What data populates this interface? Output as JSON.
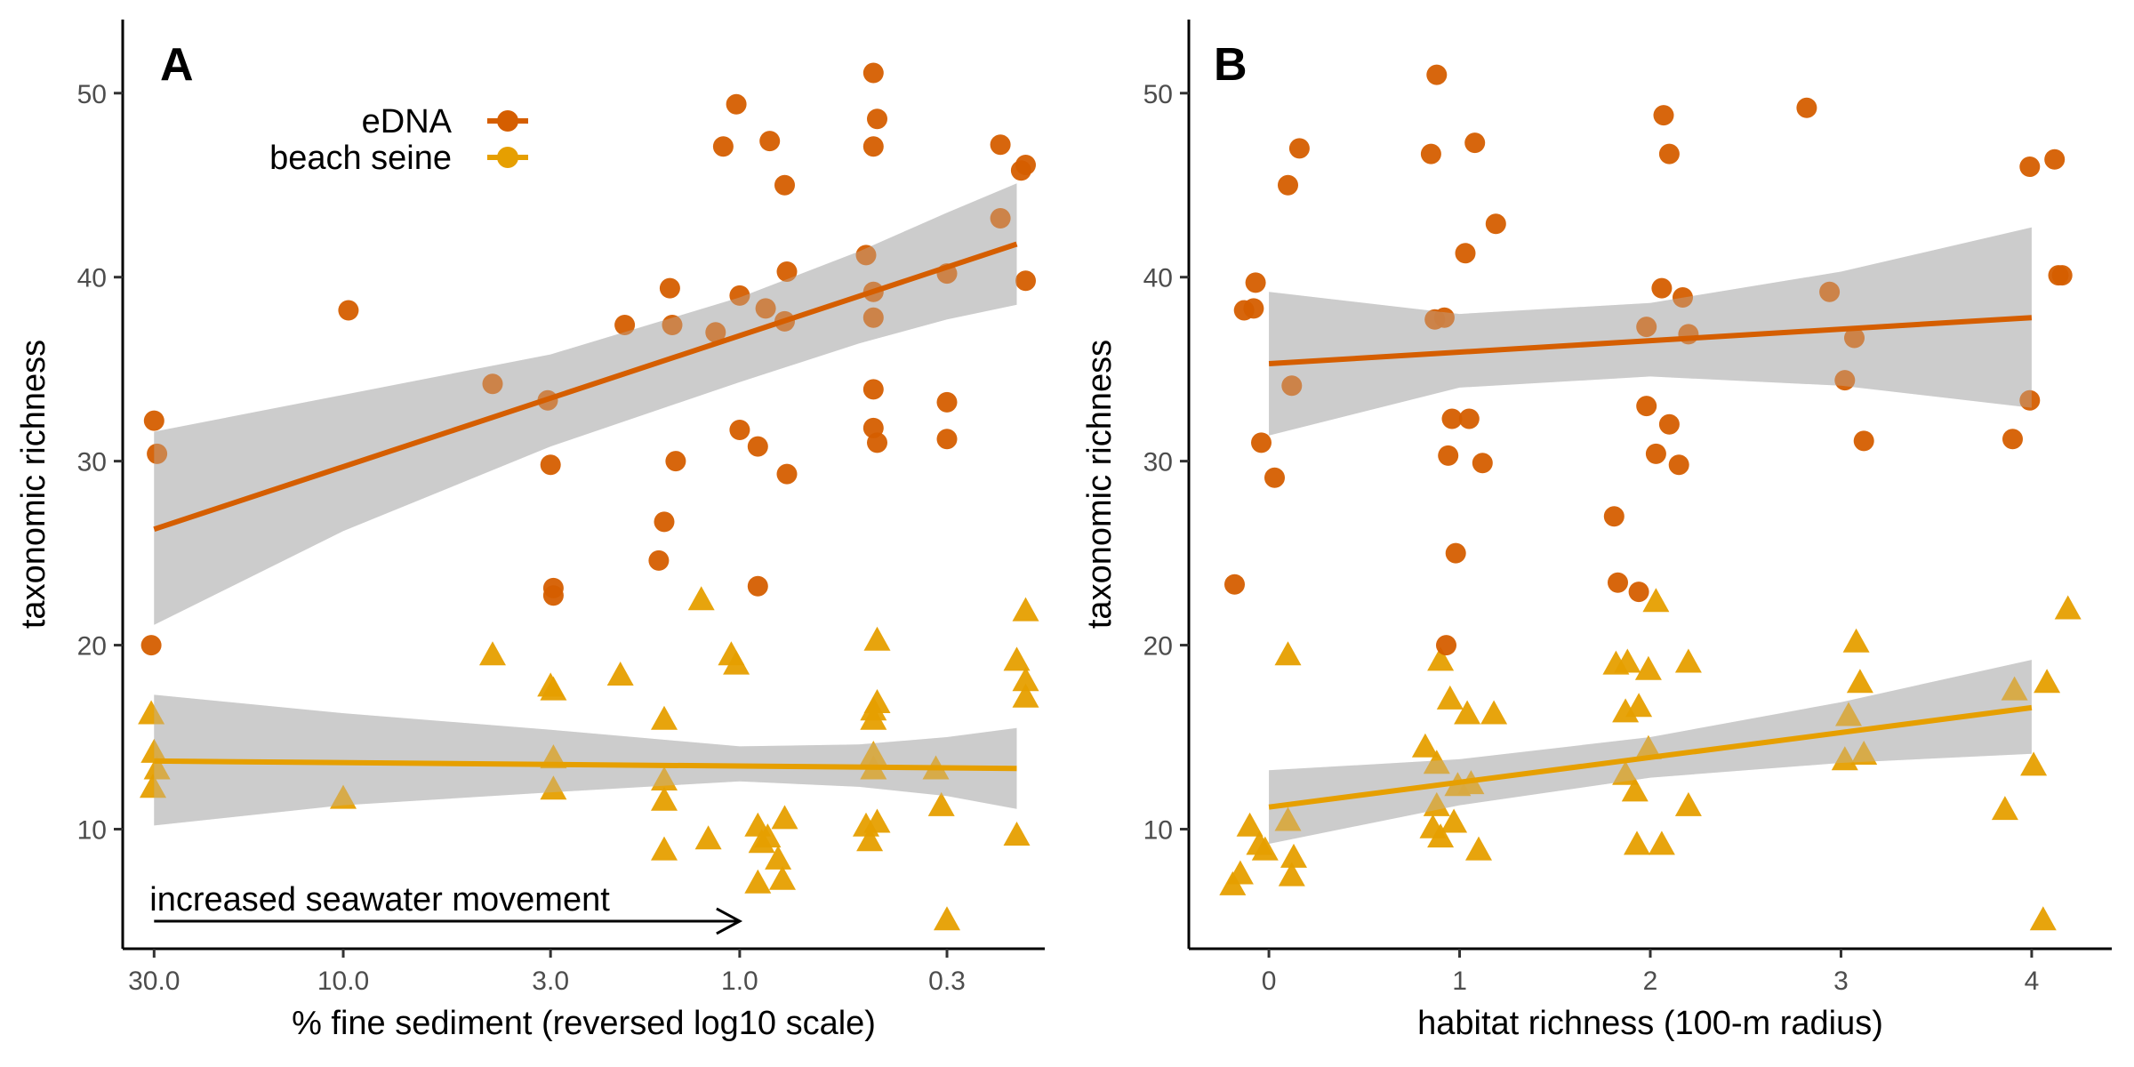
{
  "colors": {
    "edna": "#D55E00",
    "seine": "#E69F00",
    "ribbon": "#cccccc"
  },
  "legend": {
    "items": [
      {
        "label": "eDNA",
        "shape": "circle",
        "color": "#D55E00"
      },
      {
        "label": "beach seine",
        "shape": "triangle",
        "color": "#E69F00"
      }
    ],
    "placement": "top-left of panel A"
  },
  "chart_data": [
    {
      "type": "scatter",
      "panel": "A",
      "xlabel": "% fine sediment (reversed log10 scale)",
      "ylabel": "taxonomic richness",
      "x_scale": "log10, reversed",
      "xlim": [
        36,
        0.17
      ],
      "ylim": [
        3.5,
        54
      ],
      "x_ticks": [
        30,
        10,
        3,
        1,
        0.3
      ],
      "x_tick_labels": [
        "30.0",
        "10.0",
        "3.0",
        "1.0",
        "0.3"
      ],
      "y_ticks": [
        10,
        20,
        30,
        40,
        50
      ],
      "y_tick_labels": [
        "10",
        "20",
        "30",
        "40",
        "50"
      ],
      "grid": false,
      "annotation": {
        "text": "increased seawater movement",
        "arrow_from_x": 30,
        "arrow_to_x": 1.0,
        "arrow_y": 5
      },
      "series": [
        {
          "name": "eDNA",
          "marker": "circle",
          "points": [
            [
              30,
              32.2
            ],
            [
              29.5,
              30.4
            ],
            [
              30.5,
              20
            ],
            [
              9.7,
              38.2
            ],
            [
              4.2,
              34.2
            ],
            [
              3.05,
              33.3
            ],
            [
              3.0,
              29.8
            ],
            [
              2.95,
              23.1
            ],
            [
              2.95,
              22.7
            ],
            [
              1.95,
              37.4
            ],
            [
              1.6,
              24.6
            ],
            [
              1.55,
              26.7
            ],
            [
              1.5,
              39.4
            ],
            [
              1.48,
              37.4
            ],
            [
              1.45,
              30
            ],
            [
              1.15,
              37
            ],
            [
              1.1,
              47.1
            ],
            [
              1.02,
              49.4
            ],
            [
              1.0,
              39
            ],
            [
              1.0,
              31.7
            ],
            [
              0.9,
              23.2
            ],
            [
              0.9,
              30.8
            ],
            [
              0.86,
              38.3
            ],
            [
              0.84,
              47.4
            ],
            [
              0.77,
              45
            ],
            [
              0.77,
              37.6
            ],
            [
              0.76,
              40.3
            ],
            [
              0.76,
              29.3
            ],
            [
              0.48,
              41.2
            ],
            [
              0.46,
              47.1
            ],
            [
              0.46,
              51.1
            ],
            [
              0.46,
              39.2
            ],
            [
              0.46,
              37.8
            ],
            [
              0.46,
              33.9
            ],
            [
              0.46,
              31.8
            ],
            [
              0.45,
              48.6
            ],
            [
              0.45,
              31
            ],
            [
              0.3,
              33.2
            ],
            [
              0.3,
              31.2
            ],
            [
              0.3,
              40.2
            ],
            [
              0.22,
              47.2
            ],
            [
              0.22,
              43.2
            ],
            [
              0.195,
              45.8
            ],
            [
              0.19,
              46.1
            ],
            [
              0.19,
              39.8
            ]
          ]
        },
        {
          "name": "beach seine",
          "marker": "triangle",
          "points": [
            [
              30.5,
              16.2
            ],
            [
              30,
              14.1
            ],
            [
              29.5,
              13.2
            ],
            [
              30.2,
              12.2
            ],
            [
              10,
              11.6
            ],
            [
              4.2,
              19.4
            ],
            [
              3,
              17.7
            ],
            [
              2.95,
              17.5
            ],
            [
              2.95,
              13.8
            ],
            [
              2.95,
              12.1
            ],
            [
              2,
              18.3
            ],
            [
              1.55,
              15.9
            ],
            [
              1.55,
              12.6
            ],
            [
              1.55,
              11.5
            ],
            [
              1.55,
              8.8
            ],
            [
              1.25,
              22.4
            ],
            [
              1.2,
              9.4
            ],
            [
              1.05,
              19.4
            ],
            [
              1.02,
              18.9
            ],
            [
              0.9,
              10.1
            ],
            [
              0.9,
              7
            ],
            [
              0.88,
              9.2
            ],
            [
              0.85,
              9.5
            ],
            [
              0.8,
              8.3
            ],
            [
              0.78,
              7.2
            ],
            [
              0.77,
              10.5
            ],
            [
              0.48,
              10.1
            ],
            [
              0.47,
              9.3
            ],
            [
              0.46,
              16.4
            ],
            [
              0.46,
              15.9
            ],
            [
              0.46,
              14
            ],
            [
              0.46,
              13.2
            ],
            [
              0.45,
              20.2
            ],
            [
              0.45,
              16.8
            ],
            [
              0.45,
              10.3
            ],
            [
              0.32,
              13.2
            ],
            [
              0.31,
              11.2
            ],
            [
              0.3,
              5
            ],
            [
              0.2,
              19.1
            ],
            [
              0.2,
              9.6
            ],
            [
              0.19,
              21.8
            ],
            [
              0.19,
              18
            ],
            [
              0.19,
              17.1
            ]
          ]
        }
      ],
      "fits": [
        {
          "name": "eDNA",
          "x_range": [
            30,
            0.2
          ],
          "y_start": 26.3,
          "y_end": 41.8,
          "ribbon_upper": [
            [
              30,
              31.6
            ],
            [
              10,
              33.6
            ],
            [
              3,
              35.8
            ],
            [
              1,
              38.9
            ],
            [
              0.5,
              41.4
            ],
            [
              0.3,
              43.5
            ],
            [
              0.2,
              45.1
            ]
          ],
          "ribbon_lower": [
            [
              30,
              21.1
            ],
            [
              10,
              26.2
            ],
            [
              3,
              30.8
            ],
            [
              1,
              34.3
            ],
            [
              0.5,
              36.4
            ],
            [
              0.3,
              37.7
            ],
            [
              0.2,
              38.5
            ]
          ]
        },
        {
          "name": "beach seine",
          "x_range": [
            30,
            0.2
          ],
          "y_start": 13.7,
          "y_end": 13.3,
          "ribbon_upper": [
            [
              30,
              17.3
            ],
            [
              10,
              16.3
            ],
            [
              3,
              15.4
            ],
            [
              1,
              14.5
            ],
            [
              0.5,
              14.6
            ],
            [
              0.3,
              15
            ],
            [
              0.2,
              15.5
            ]
          ],
          "ribbon_lower": [
            [
              30,
              10.2
            ],
            [
              10,
              11.3
            ],
            [
              3,
              12
            ],
            [
              1,
              12.6
            ],
            [
              0.5,
              12.3
            ],
            [
              0.3,
              11.8
            ],
            [
              0.2,
              11.1
            ]
          ]
        }
      ]
    },
    {
      "type": "scatter",
      "panel": "B",
      "xlabel": "habitat richness (100-m radius)",
      "ylabel": "taxonomic richness",
      "xlim": [
        -0.42,
        4.42
      ],
      "ylim": [
        3.5,
        54
      ],
      "x_ticks": [
        0,
        1,
        2,
        3,
        4
      ],
      "x_tick_labels": [
        "0",
        "1",
        "2",
        "3",
        "4"
      ],
      "y_ticks": [
        10,
        20,
        30,
        40,
        50
      ],
      "y_tick_labels": [
        "10",
        "20",
        "30",
        "40",
        "50"
      ],
      "grid": false,
      "series": [
        {
          "name": "eDNA",
          "marker": "circle",
          "points": [
            [
              -0.18,
              23.3
            ],
            [
              -0.13,
              38.2
            ],
            [
              -0.08,
              38.3
            ],
            [
              -0.07,
              39.7
            ],
            [
              -0.04,
              31
            ],
            [
              0.03,
              29.1
            ],
            [
              0.1,
              45
            ],
            [
              0.12,
              34.1
            ],
            [
              0.16,
              47
            ],
            [
              0.85,
              46.7
            ],
            [
              0.88,
              51
            ],
            [
              0.87,
              37.7
            ],
            [
              0.92,
              37.8
            ],
            [
              0.93,
              20
            ],
            [
              0.94,
              30.3
            ],
            [
              0.96,
              32.3
            ],
            [
              0.98,
              25
            ],
            [
              1.03,
              41.3
            ],
            [
              1.05,
              32.3
            ],
            [
              1.08,
              47.3
            ],
            [
              1.12,
              29.9
            ],
            [
              1.19,
              42.9
            ],
            [
              1.81,
              27
            ],
            [
              1.83,
              23.4
            ],
            [
              1.94,
              22.9
            ],
            [
              1.98,
              37.3
            ],
            [
              1.98,
              33
            ],
            [
              2.03,
              30.4
            ],
            [
              2.06,
              39.4
            ],
            [
              2.07,
              48.8
            ],
            [
              2.1,
              46.7
            ],
            [
              2.1,
              32
            ],
            [
              2.15,
              29.8
            ],
            [
              2.17,
              38.9
            ],
            [
              2.2,
              36.9
            ],
            [
              2.82,
              49.2
            ],
            [
              2.94,
              39.2
            ],
            [
              3.02,
              34.4
            ],
            [
              3.07,
              36.7
            ],
            [
              3.12,
              31.1
            ],
            [
              3.9,
              31.2
            ],
            [
              3.99,
              46
            ],
            [
              3.99,
              33.3
            ],
            [
              4.12,
              46.4
            ],
            [
              4.14,
              40.1
            ],
            [
              4.16,
              40.1
            ]
          ]
        },
        {
          "name": "beach seine",
          "marker": "triangle",
          "points": [
            [
              -0.19,
              6.9
            ],
            [
              -0.15,
              7.5
            ],
            [
              -0.1,
              10.1
            ],
            [
              -0.05,
              9.1
            ],
            [
              -0.02,
              8.8
            ],
            [
              0.1,
              19.4
            ],
            [
              0.1,
              10.4
            ],
            [
              0.13,
              8.4
            ],
            [
              0.12,
              7.4
            ],
            [
              0.82,
              14.4
            ],
            [
              0.86,
              10
            ],
            [
              0.88,
              13.5
            ],
            [
              0.88,
              11.2
            ],
            [
              0.9,
              19.1
            ],
            [
              0.9,
              9.5
            ],
            [
              0.95,
              17
            ],
            [
              0.97,
              10.3
            ],
            [
              0.99,
              12.3
            ],
            [
              1.04,
              16.2
            ],
            [
              1.06,
              12.4
            ],
            [
              1.1,
              8.8
            ],
            [
              1.18,
              16.2
            ],
            [
              1.82,
              18.9
            ],
            [
              1.87,
              16.3
            ],
            [
              1.87,
              12.9
            ],
            [
              1.88,
              19
            ],
            [
              1.92,
              12
            ],
            [
              1.94,
              16.6
            ],
            [
              1.93,
              9.1
            ],
            [
              1.99,
              18.6
            ],
            [
              1.99,
              14.3
            ],
            [
              2.03,
              22.3
            ],
            [
              2.06,
              9.1
            ],
            [
              2.2,
              11.2
            ],
            [
              2.2,
              19
            ],
            [
              3.02,
              13.7
            ],
            [
              3.04,
              16.1
            ],
            [
              3.08,
              20.1
            ],
            [
              3.1,
              17.9
            ],
            [
              3.12,
              14
            ],
            [
              3.86,
              11
            ],
            [
              3.91,
              17.5
            ],
            [
              4.01,
              13.4
            ],
            [
              4.06,
              5
            ],
            [
              4.08,
              17.9
            ],
            [
              4.19,
              21.9
            ]
          ]
        }
      ],
      "fits": [
        {
          "name": "eDNA",
          "x_range": [
            0,
            4
          ],
          "y_start": 35.3,
          "y_end": 37.8,
          "ribbon_upper": [
            [
              0,
              39.2
            ],
            [
              1,
              38
            ],
            [
              2,
              38.6
            ],
            [
              3,
              40.3
            ],
            [
              4,
              42.7
            ]
          ],
          "ribbon_lower": [
            [
              0,
              31.4
            ],
            [
              1,
              34
            ],
            [
              2,
              34.6
            ],
            [
              3,
              34.1
            ],
            [
              4,
              32.9
            ]
          ]
        },
        {
          "name": "beach seine",
          "x_range": [
            0,
            4
          ],
          "y_start": 11.2,
          "y_end": 16.6,
          "ribbon_upper": [
            [
              0,
              13.2
            ],
            [
              1,
              13.8
            ],
            [
              2,
              15
            ],
            [
              3,
              16.9
            ],
            [
              4,
              19.2
            ]
          ],
          "ribbon_lower": [
            [
              0,
              9.2
            ],
            [
              1,
              11.3
            ],
            [
              2,
              12.8
            ],
            [
              3,
              13.6
            ],
            [
              4,
              14.1
            ]
          ]
        }
      ]
    }
  ]
}
